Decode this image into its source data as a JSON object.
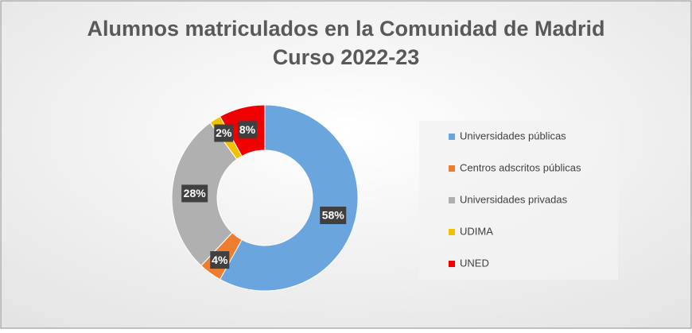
{
  "chart_data": {
    "type": "donut",
    "title": "Alumnos matriculados en la Comunidad de Madrid",
    "subtitle": "Curso 2022-23",
    "categories": [
      "Universidades públicas",
      "Centros adscritos públicas",
      "Universidades privadas",
      "UDIMA",
      "UNED"
    ],
    "values": [
      58,
      4,
      28,
      2,
      8
    ],
    "value_labels": [
      "58%",
      "4%",
      "28%",
      "2%",
      "8%"
    ],
    "colors": [
      "#6aa5de",
      "#ed7d31",
      "#b0b0b0",
      "#f2c200",
      "#f00000"
    ],
    "legend": "right"
  }
}
